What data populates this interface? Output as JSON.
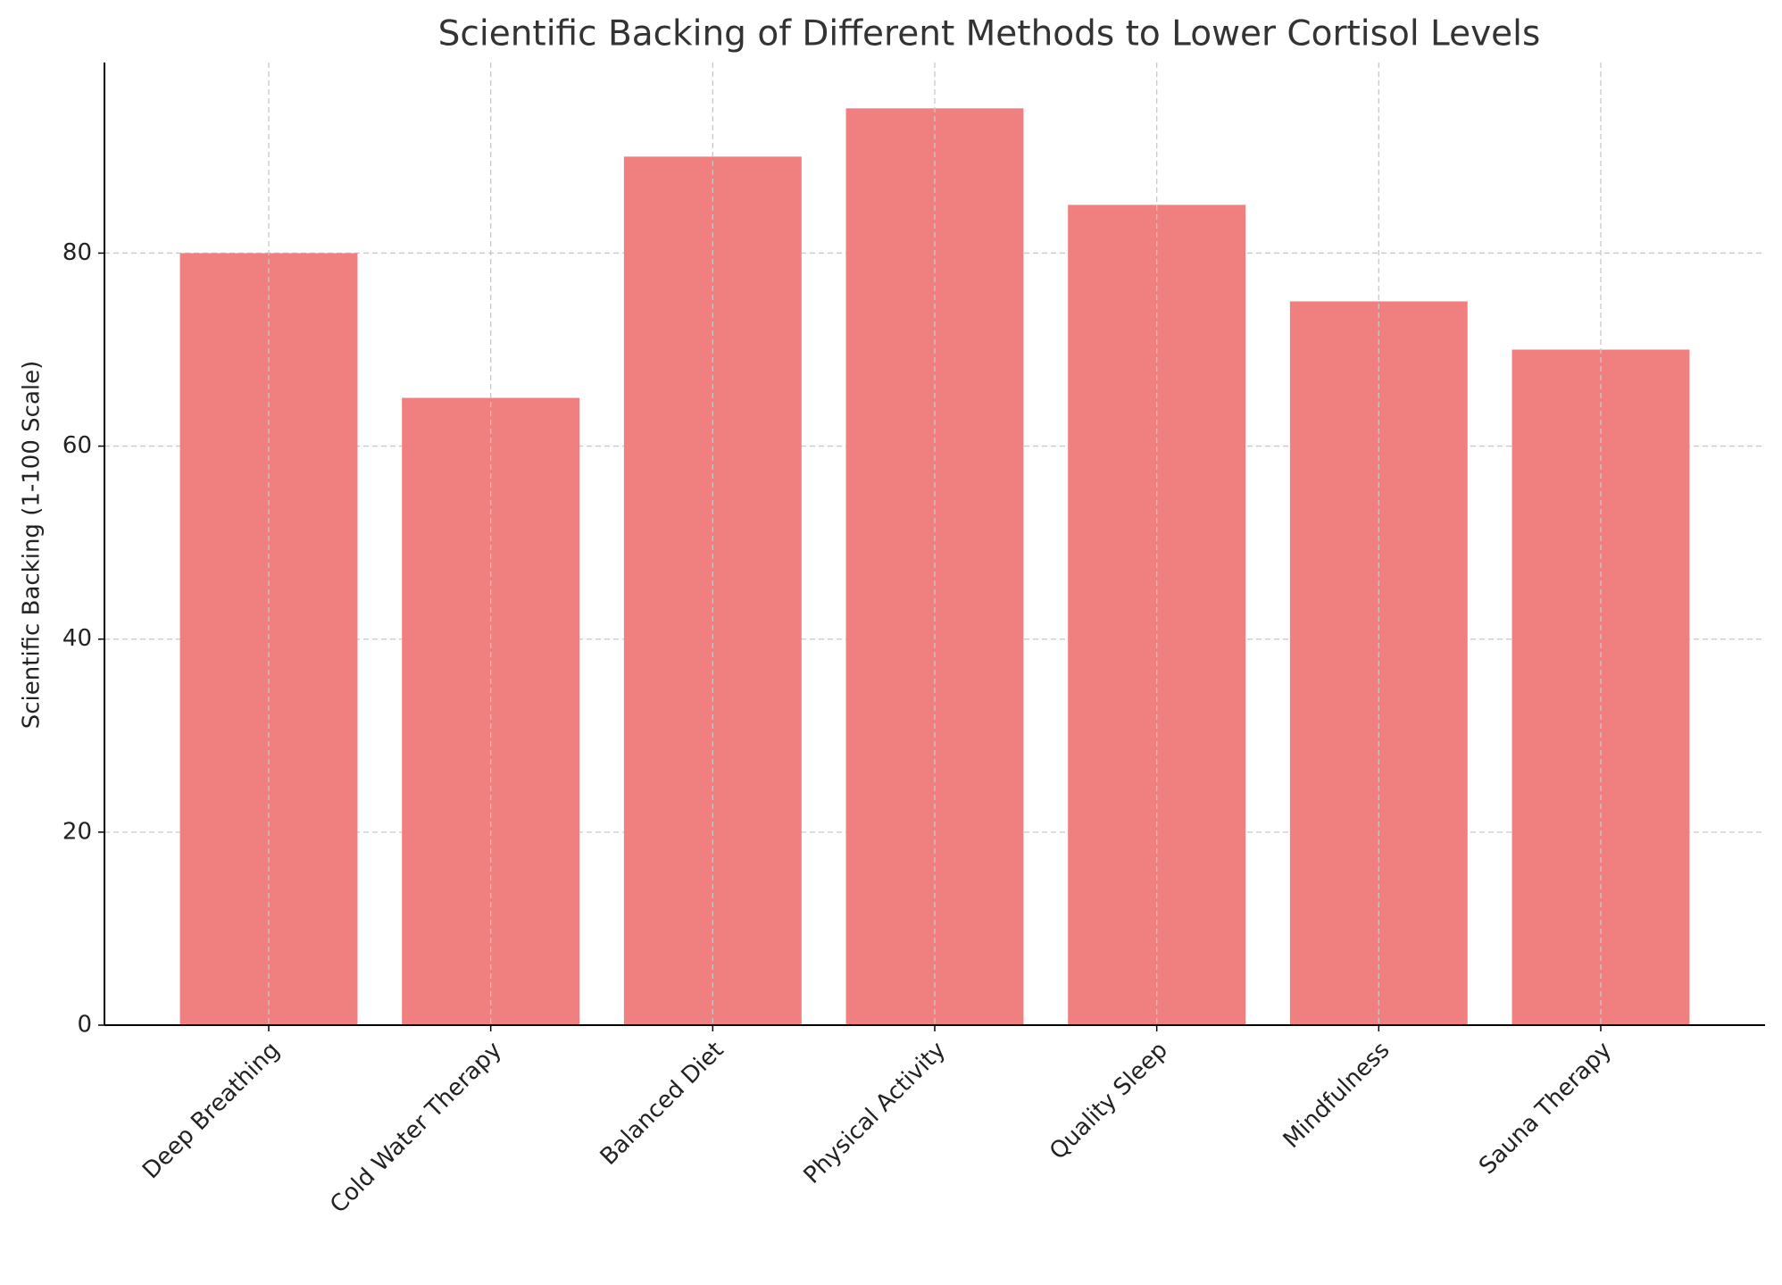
{
  "chart_data": {
    "type": "bar",
    "title": "Scientific Backing of Different Methods to Lower Cortisol Levels",
    "y_label": "Scientific Backing (1-100 Scale)",
    "categories": [
      "Deep Breathing",
      "Cold Water Therapy",
      "Balanced Diet",
      "Physical Activity",
      "Quality Sleep",
      "Mindfulness",
      "Sauna Therapy"
    ],
    "values": [
      80,
      65,
      90,
      95,
      85,
      75,
      70
    ],
    "color": "#f08080",
    "ylim": [
      0,
      99.75
    ],
    "yticks": [
      0,
      20,
      40,
      60,
      80
    ],
    "grid": true
  }
}
